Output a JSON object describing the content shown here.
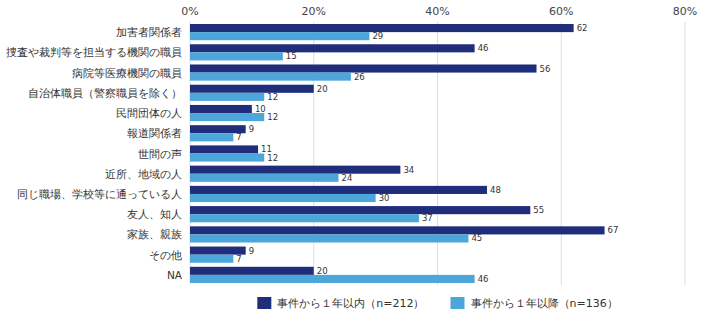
{
  "chart_data": {
    "type": "bar",
    "orientation": "horizontal",
    "categories": [
      "NA",
      "その他",
      "家族、親族",
      "友人、知人",
      "同じ職場、学校等に通っている人",
      "近所、地域の人",
      "世間の声",
      "報道関係者",
      "民間団体の人",
      "自治体職員（警察職員を除く）",
      "病院等医療機関の職員",
      "捜査や裁判等を担当する機関の職員",
      "加害者関係者"
    ],
    "series": [
      {
        "name": "事件から１年以内（n=212）",
        "color": "#1f2d7b",
        "values": [
          20,
          9,
          67,
          55,
          48,
          34,
          11,
          9,
          10,
          20,
          56,
          46,
          62
        ]
      },
      {
        "name": "事件から１年以降（n=136）",
        "color": "#4da6d9",
        "values": [
          46,
          7,
          45,
          37,
          30,
          24,
          12,
          7,
          12,
          12,
          26,
          15,
          29
        ]
      }
    ],
    "xlim": [
      0,
      80
    ],
    "xticks": [
      {
        "value": 0,
        "label": "0%"
      },
      {
        "value": 20,
        "label": "20%"
      },
      {
        "value": 40,
        "label": "40%"
      },
      {
        "value": 60,
        "label": "60%"
      },
      {
        "value": 80,
        "label": "80%"
      }
    ],
    "grid": true,
    "data_labels": true,
    "legend": "bottom"
  }
}
